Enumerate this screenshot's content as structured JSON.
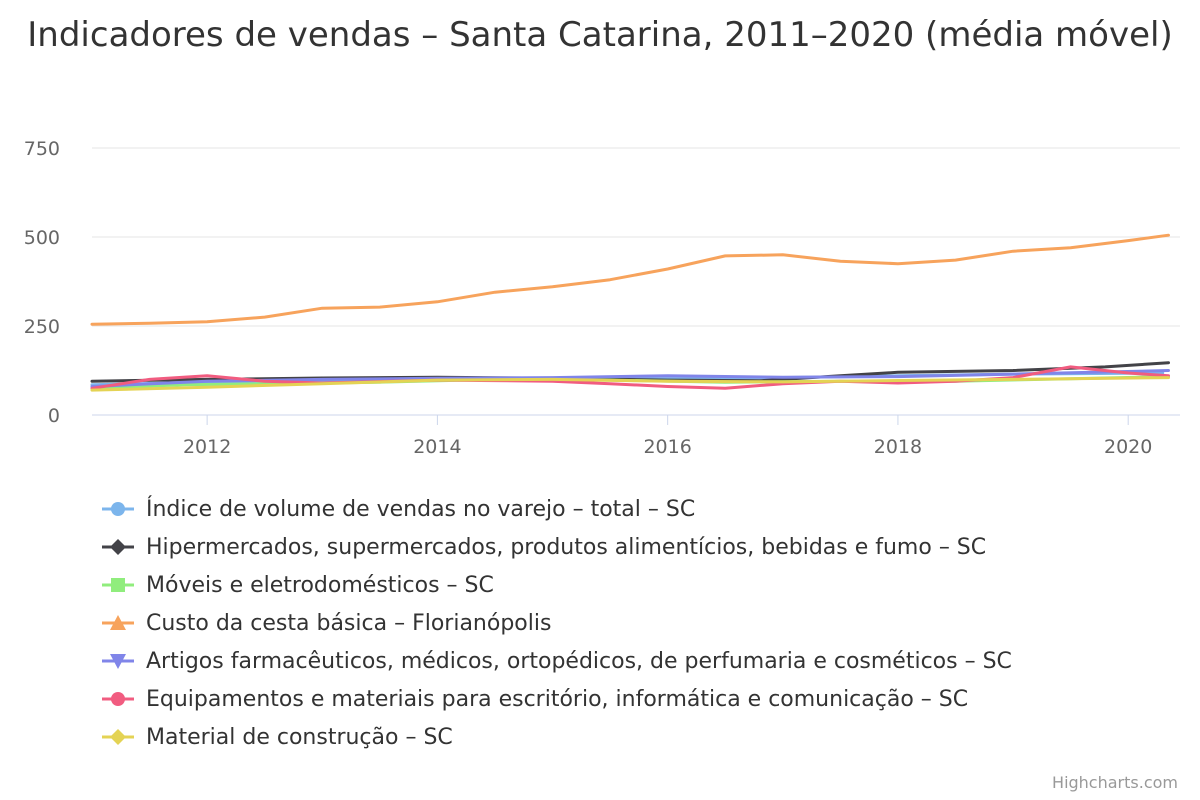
{
  "chart_data": {
    "type": "line",
    "title": "Indicadores de vendas – Santa Catarina, 2011–2020 (média móvel)",
    "xlabel": "",
    "ylabel": "",
    "xlim": [
      2011.0,
      2020.45
    ],
    "ylim": [
      0,
      750
    ],
    "x_ticks": [
      2012,
      2014,
      2016,
      2018,
      2020
    ],
    "y_ticks": [
      0,
      250,
      500,
      750
    ],
    "grid": true,
    "legend_position": "bottom",
    "series": [
      {
        "name": "Índice de volume de vendas no varejo – total – SC",
        "color": "#7cb5ec",
        "marker": "circle",
        "x": [
          2011.0,
          2012.0,
          2013.0,
          2014.0,
          2015.0,
          2016.0,
          2017.0,
          2018.0,
          2019.0,
          2020.3
        ],
        "y": [
          85,
          92,
          95,
          100,
          103,
          102,
          105,
          110,
          115,
          118
        ]
      },
      {
        "name": "Hipermercados, supermercados, produtos alimentícios, bebidas e fumo – SC",
        "color": "#434348",
        "marker": "diamond",
        "x": [
          2011.0,
          2012.0,
          2013.0,
          2014.0,
          2015.0,
          2016.0,
          2016.8,
          2017.5,
          2018.0,
          2019.0,
          2019.8,
          2020.35
        ],
        "y": [
          95,
          100,
          104,
          106,
          103,
          98,
          96,
          110,
          120,
          125,
          135,
          147
        ]
      },
      {
        "name": "Móveis e eletrodomésticos – SC",
        "color": "#90ed7d",
        "marker": "square",
        "x": [
          2011.0,
          2011.8,
          2012.5,
          2013.5,
          2014.5,
          2015.5,
          2016.5,
          2017.5,
          2018.5,
          2019.5,
          2020.35
        ],
        "y": [
          75,
          85,
          88,
          92,
          100,
          98,
          92,
          95,
          95,
          102,
          108
        ]
      },
      {
        "name": "Custo da cesta básica – Florianópolis",
        "color": "#f7a35c",
        "marker": "triangle",
        "x": [
          2011.0,
          2011.5,
          2012.0,
          2012.5,
          2013.0,
          2013.5,
          2014.0,
          2014.5,
          2015.0,
          2015.5,
          2016.0,
          2016.5,
          2017.0,
          2017.5,
          2018.0,
          2018.5,
          2019.0,
          2019.5,
          2020.0,
          2020.35
        ],
        "y": [
          255,
          258,
          262,
          275,
          300,
          303,
          318,
          345,
          360,
          380,
          410,
          447,
          450,
          432,
          425,
          435,
          460,
          470,
          490,
          505
        ]
      },
      {
        "name": "Artigos farmacêuticos, médicos, ortopédicos, de perfumaria e cosméticos – SC",
        "color": "#8085e9",
        "marker": "triangle-down",
        "x": [
          2011.0,
          2012.0,
          2013.0,
          2014.0,
          2015.0,
          2016.0,
          2017.0,
          2018.0,
          2019.0,
          2020.35
        ],
        "y": [
          80,
          95,
          100,
          103,
          105,
          110,
          106,
          108,
          115,
          125
        ]
      },
      {
        "name": "Equipamentos e materiais para escritório, informática e comunicação – SC",
        "color": "#f15c80",
        "marker": "circle",
        "x": [
          2011.0,
          2011.5,
          2012.0,
          2012.5,
          2013.0,
          2014.0,
          2015.0,
          2015.5,
          2016.0,
          2016.5,
          2017.0,
          2017.5,
          2018.0,
          2018.5,
          2019.0,
          2019.5,
          2020.0,
          2020.35
        ],
        "y": [
          75,
          100,
          110,
          95,
          90,
          98,
          95,
          88,
          80,
          75,
          88,
          95,
          90,
          95,
          105,
          135,
          118,
          110
        ]
      },
      {
        "name": "Material de construção – SC",
        "color": "#e4d354",
        "marker": "diamond",
        "x": [
          2011.0,
          2012.0,
          2013.0,
          2014.0,
          2015.0,
          2016.0,
          2017.0,
          2018.0,
          2019.0,
          2020.35
        ],
        "y": [
          70,
          78,
          88,
          98,
          100,
          95,
          93,
          97,
          100,
          105
        ]
      }
    ]
  },
  "credits": "Highcharts.com"
}
